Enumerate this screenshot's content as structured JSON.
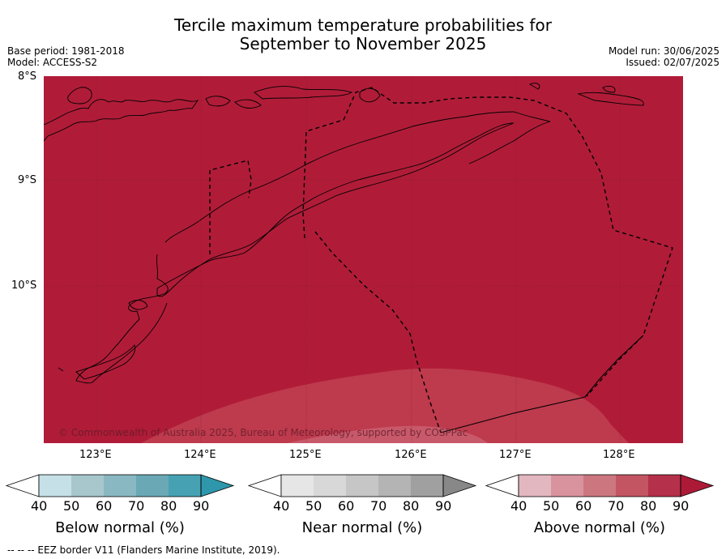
{
  "title_line1": "Tercile maximum temperature probabilities for",
  "title_line2": "September to November 2025",
  "meta": {
    "base_period": "Base period: 1981-2018",
    "model": "Model: ACCESS-S2",
    "model_run": "Model run: 30/06/2025",
    "issued": "Issued: 02/07/2025"
  },
  "map": {
    "lat_labels": [
      "8°S",
      "9°S",
      "10°S"
    ],
    "lon_labels": [
      "123°E",
      "124°E",
      "125°E",
      "126°E",
      "127°E",
      "128°E"
    ],
    "fill_main": "#b01c38",
    "fill_lower": "#be3a4d",
    "fill_lowest": "#c8596a",
    "copyright": "© Commonwealth of Australia 2025, Bureau of Meteorology, supported by COSPPac"
  },
  "colorbars": [
    {
      "label": "Below normal (%)",
      "ticks": [
        "40",
        "50",
        "60",
        "70",
        "80",
        "90"
      ],
      "colors": [
        "#ffffff",
        "#c6e0e7",
        "#a7c7cd",
        "#8ab8c2",
        "#6aa8b5",
        "#46a2b3",
        "#2e97ab"
      ]
    },
    {
      "label": "Near normal (%)",
      "ticks": [
        "40",
        "50",
        "60",
        "70",
        "80",
        "90"
      ],
      "colors": [
        "#ffffff",
        "#e6e6e6",
        "#d8d8d8",
        "#c6c6c6",
        "#b4b4b4",
        "#a0a0a0",
        "#888888"
      ]
    },
    {
      "label": "Above normal (%)",
      "ticks": [
        "40",
        "50",
        "60",
        "70",
        "80",
        "90"
      ],
      "colors": [
        "#ffffff",
        "#e3b7bf",
        "#d9939e",
        "#cc7780",
        "#c35562",
        "#b5304a",
        "#ad1a37"
      ]
    }
  ],
  "footnote": "--  --  -- EEZ border V11 (Flanders Marine Institute, 2019)."
}
